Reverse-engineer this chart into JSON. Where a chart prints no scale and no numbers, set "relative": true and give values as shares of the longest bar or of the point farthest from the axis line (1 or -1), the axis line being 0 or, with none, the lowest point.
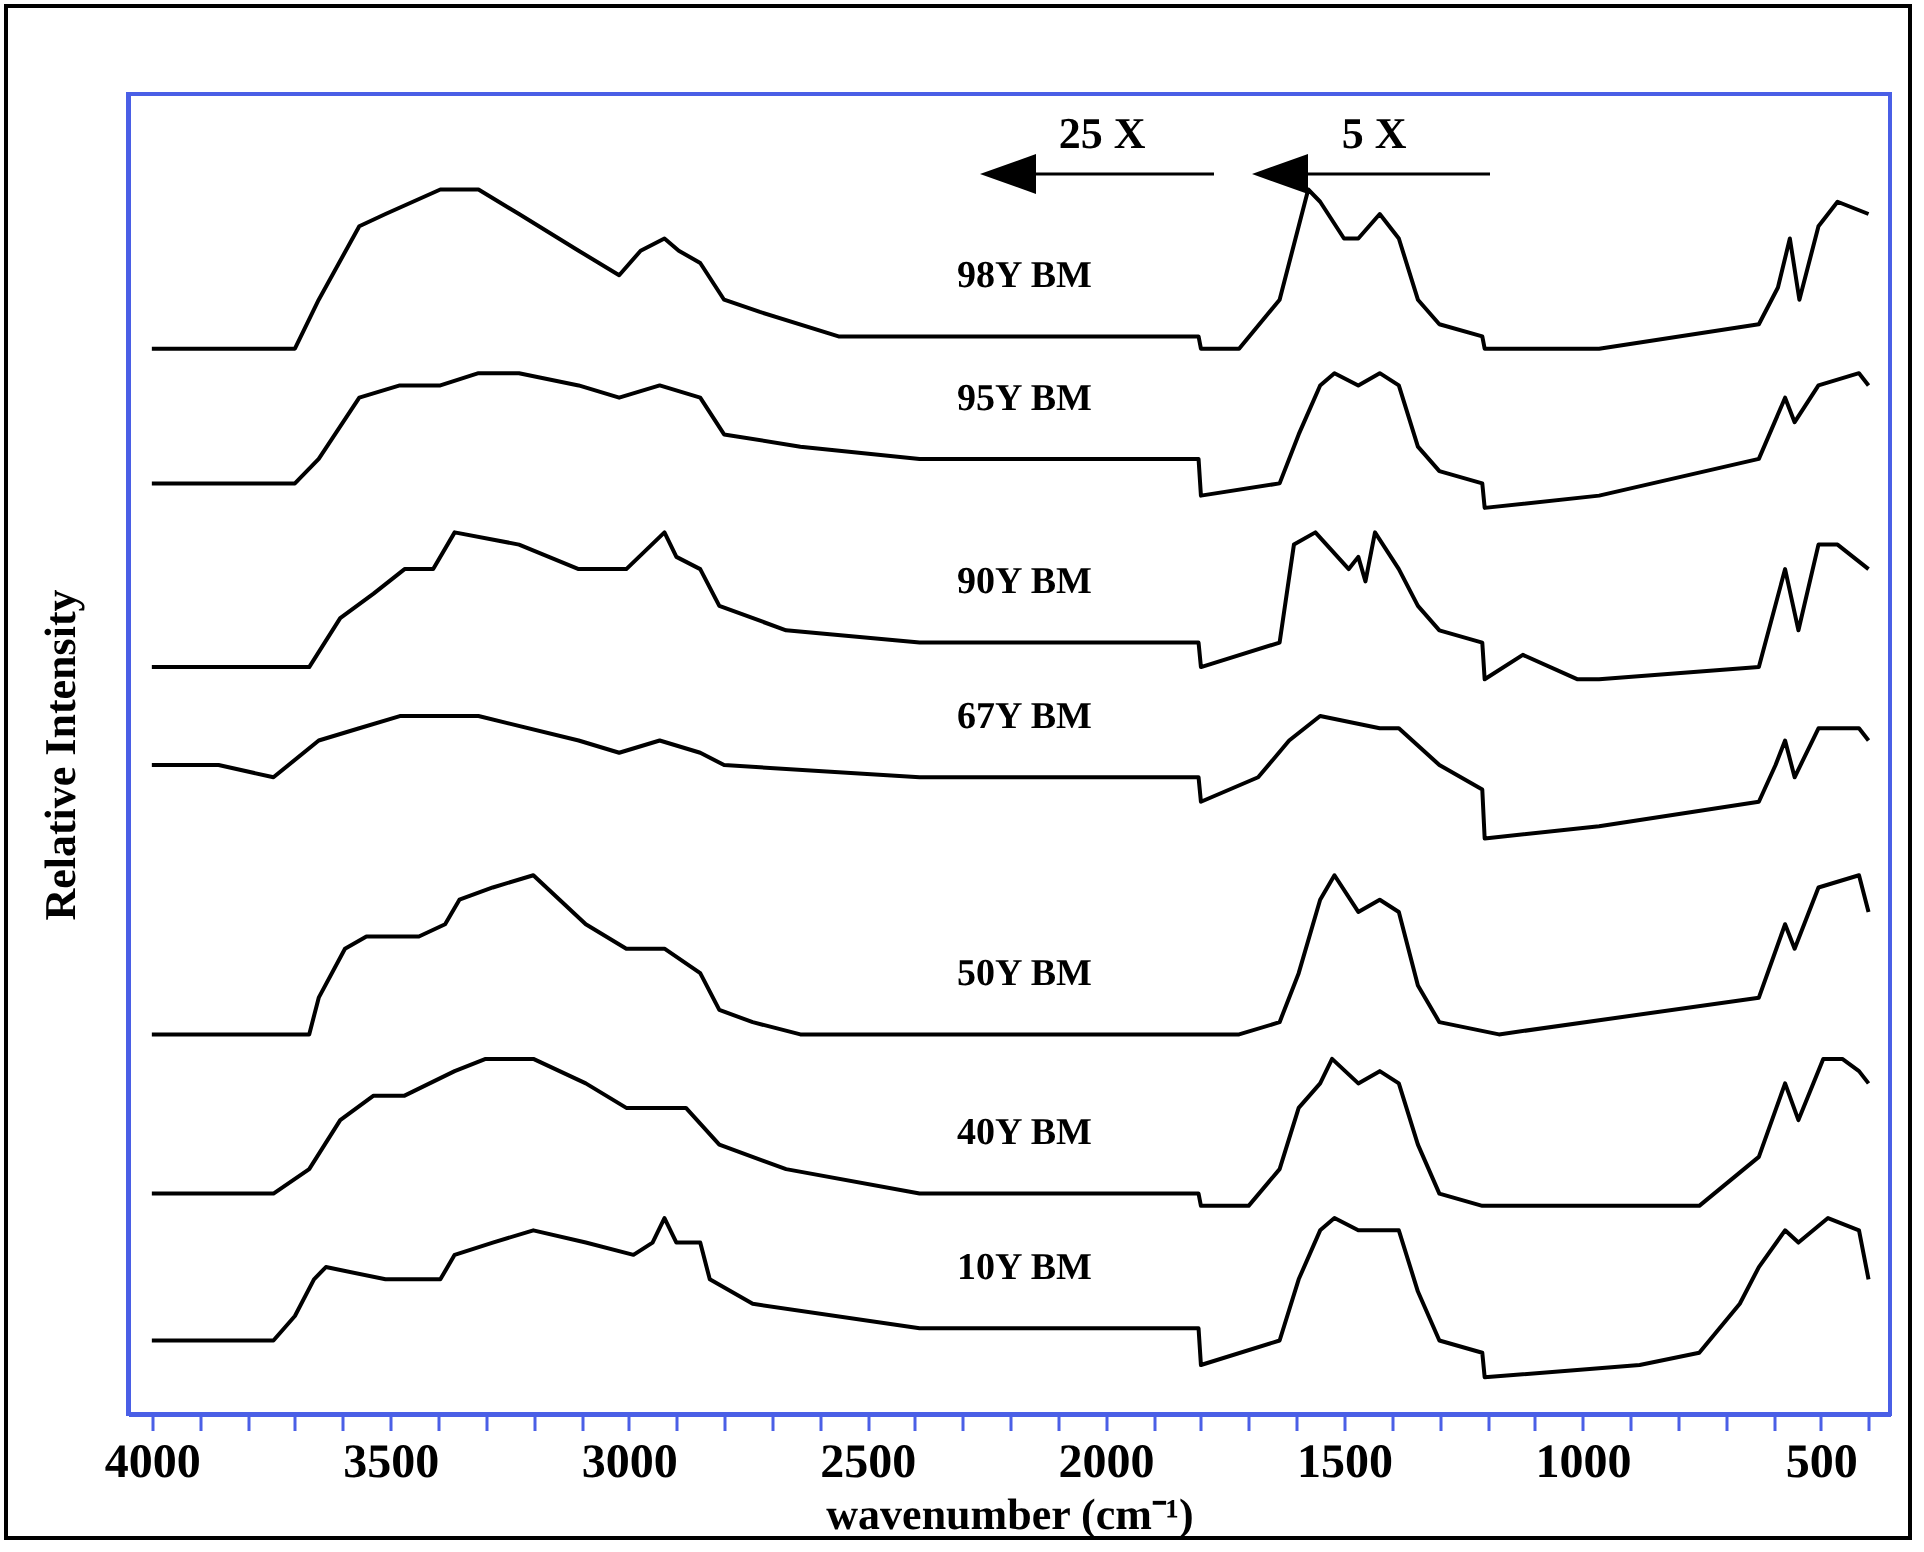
{
  "chart_data": {
    "type": "line",
    "relative": true,
    "xlabel": "wavenumber (cm⁻¹)",
    "ylabel": "Relative Intensity",
    "xlim": [
      4050,
      355
    ],
    "xticks": [
      4000,
      {
        "value": 3900,
        "label": null
      },
      {
        "value": 3800,
        "label": null
      },
      {
        "value": 3700,
        "label": null
      },
      {
        "value": 3600,
        "label": null
      },
      3500,
      {
        "value": 3400,
        "label": null
      },
      {
        "value": 3300,
        "label": null
      },
      {
        "value": 3200,
        "label": null
      },
      {
        "value": 3100,
        "label": null
      },
      3000,
      {
        "value": 2900,
        "label": null
      },
      {
        "value": 2800,
        "label": null
      },
      {
        "value": 2700,
        "label": null
      },
      {
        "value": 2600,
        "label": null
      },
      2500,
      {
        "value": 2400,
        "label": null
      },
      {
        "value": 2300,
        "label": null
      },
      {
        "value": 2200,
        "label": null
      },
      {
        "value": 2100,
        "label": null
      },
      2000,
      {
        "value": 1900,
        "label": null
      },
      {
        "value": 1800,
        "label": null
      },
      {
        "value": 1700,
        "label": null
      },
      {
        "value": 1600,
        "label": null
      },
      1500,
      {
        "value": 1400,
        "label": null
      },
      {
        "value": 1300,
        "label": null
      },
      {
        "value": 1200,
        "label": null
      },
      {
        "value": 1100,
        "label": null
      },
      1000,
      {
        "value": 900,
        "label": null
      },
      {
        "value": 800,
        "label": null
      },
      {
        "value": 700,
        "label": null
      },
      {
        "value": 600,
        "label": null
      },
      500,
      {
        "value": 400,
        "label": null
      }
    ],
    "annotations": [
      "25 X",
      "5 X"
    ],
    "series": [
      {
        "name": "98Y BM",
        "color": "#000000",
        "x": [
          4000,
          3700,
          3650,
          3565,
          3510,
          3395,
          3315,
          3230,
          3105,
          3020,
          2975,
          2925,
          2895,
          2850,
          2800,
          2725,
          2560,
          2390,
          1805,
          1800,
          1720,
          1635,
          1595,
          1575,
          1550,
          1500,
          1470,
          1425,
          1385,
          1345,
          1300,
          1210,
          1205,
          965,
          630,
          590,
          565,
          545,
          505,
          465,
          400
        ],
        "values": [
          0.87,
          0.87,
          0.91,
          0.97,
          0.98,
          1.0,
          1.0,
          0.98,
          0.95,
          0.93,
          0.95,
          0.96,
          0.95,
          0.94,
          0.91,
          0.9,
          0.88,
          0.88,
          0.88,
          0.87,
          0.87,
          0.91,
          0.97,
          1.0,
          0.99,
          0.96,
          0.96,
          0.98,
          0.96,
          0.91,
          0.89,
          0.88,
          0.87,
          0.87,
          0.89,
          0.92,
          0.96,
          0.91,
          0.97,
          0.99,
          0.98
        ]
      },
      {
        "name": "95Y BM",
        "color": "#000000",
        "x": [
          4000,
          3700,
          3650,
          3565,
          3480,
          3395,
          3315,
          3230,
          3105,
          3020,
          2935,
          2850,
          2800,
          2640,
          2390,
          1805,
          1800,
          1635,
          1595,
          1550,
          1520,
          1470,
          1425,
          1385,
          1345,
          1300,
          1210,
          1205,
          965,
          630,
          575,
          555,
          505,
          420,
          400
        ],
        "values": [
          0.76,
          0.76,
          0.78,
          0.83,
          0.84,
          0.84,
          0.85,
          0.85,
          0.84,
          0.83,
          0.84,
          0.83,
          0.8,
          0.79,
          0.78,
          0.78,
          0.75,
          0.76,
          0.8,
          0.84,
          0.85,
          0.84,
          0.85,
          0.84,
          0.79,
          0.77,
          0.76,
          0.74,
          0.75,
          0.78,
          0.83,
          0.81,
          0.84,
          0.85,
          0.84
        ]
      },
      {
        "name": "90Y BM",
        "color": "#000000",
        "x": [
          4000,
          3860,
          3745,
          3670,
          3605,
          3535,
          3470,
          3410,
          3365,
          3230,
          3105,
          3005,
          2925,
          2900,
          2850,
          2810,
          2670,
          2390,
          1805,
          1800,
          1635,
          1605,
          1560,
          1490,
          1470,
          1455,
          1435,
          1385,
          1345,
          1300,
          1210,
          1205,
          1125,
          1010,
          965,
          630,
          575,
          547,
          505,
          465,
          400
        ],
        "values": [
          0.61,
          0.61,
          0.61,
          0.61,
          0.65,
          0.67,
          0.69,
          0.69,
          0.72,
          0.71,
          0.69,
          0.69,
          0.72,
          0.7,
          0.69,
          0.66,
          0.64,
          0.63,
          0.63,
          0.61,
          0.63,
          0.71,
          0.72,
          0.69,
          0.7,
          0.68,
          0.72,
          0.69,
          0.66,
          0.64,
          0.63,
          0.6,
          0.62,
          0.6,
          0.6,
          0.61,
          0.69,
          0.64,
          0.71,
          0.71,
          0.69
        ]
      },
      {
        "name": "67Y BM",
        "color": "#000000",
        "x": [
          4000,
          3860,
          3745,
          3650,
          3565,
          3480,
          3395,
          3315,
          3105,
          3020,
          2935,
          2850,
          2800,
          2390,
          1805,
          1800,
          1680,
          1615,
          1550,
          1425,
          1385,
          1300,
          1210,
          1205,
          965,
          630,
          595,
          575,
          555,
          505,
          420,
          400
        ],
        "values": [
          0.53,
          0.53,
          0.52,
          0.55,
          0.56,
          0.57,
          0.57,
          0.57,
          0.55,
          0.54,
          0.55,
          0.54,
          0.53,
          0.52,
          0.52,
          0.5,
          0.52,
          0.55,
          0.57,
          0.56,
          0.56,
          0.53,
          0.51,
          0.47,
          0.48,
          0.5,
          0.53,
          0.55,
          0.52,
          0.56,
          0.56,
          0.55
        ]
      },
      {
        "name": "50Y BM",
        "color": "#000000",
        "x": [
          4000,
          3670,
          3650,
          3595,
          3550,
          3440,
          3385,
          3355,
          3285,
          3200,
          3145,
          3090,
          3005,
          2925,
          2850,
          2810,
          2740,
          2640,
          1720,
          1635,
          1595,
          1550,
          1520,
          1470,
          1425,
          1385,
          1345,
          1300,
          1175,
          630,
          575,
          555,
          505,
          420,
          400
        ],
        "values": [
          0.31,
          0.31,
          0.34,
          0.38,
          0.39,
          0.39,
          0.4,
          0.42,
          0.43,
          0.44,
          0.42,
          0.4,
          0.38,
          0.38,
          0.36,
          0.33,
          0.32,
          0.31,
          0.31,
          0.32,
          0.36,
          0.42,
          0.44,
          0.41,
          0.42,
          0.41,
          0.35,
          0.32,
          0.31,
          0.34,
          0.4,
          0.38,
          0.43,
          0.44,
          0.41
        ]
      },
      {
        "name": "40Y BM",
        "color": "#000000",
        "x": [
          4000,
          3860,
          3745,
          3670,
          3605,
          3535,
          3470,
          3365,
          3300,
          3200,
          3090,
          3005,
          2880,
          2810,
          2670,
          2390,
          1805,
          1800,
          1700,
          1635,
          1595,
          1550,
          1525,
          1470,
          1425,
          1385,
          1345,
          1300,
          1210,
          1205,
          755,
          630,
          575,
          547,
          495,
          455,
          420,
          400
        ],
        "values": [
          0.18,
          0.18,
          0.18,
          0.2,
          0.24,
          0.26,
          0.26,
          0.28,
          0.29,
          0.29,
          0.27,
          0.25,
          0.25,
          0.22,
          0.2,
          0.18,
          0.18,
          0.17,
          0.17,
          0.2,
          0.25,
          0.27,
          0.29,
          0.27,
          0.28,
          0.27,
          0.22,
          0.18,
          0.17,
          0.17,
          0.17,
          0.21,
          0.27,
          0.24,
          0.29,
          0.29,
          0.28,
          0.27
        ]
      },
      {
        "name": "10Y BM",
        "color": "#000000",
        "x": [
          4000,
          3860,
          3745,
          3700,
          3660,
          3635,
          3510,
          3395,
          3365,
          3285,
          3200,
          3090,
          2990,
          2950,
          2925,
          2900,
          2850,
          2830,
          2740,
          2390,
          1805,
          1800,
          1635,
          1595,
          1550,
          1520,
          1470,
          1385,
          1345,
          1300,
          1210,
          1205,
          880,
          755,
          670,
          630,
          575,
          547,
          485,
          420,
          400
        ],
        "values": [
          0.06,
          0.06,
          0.06,
          0.08,
          0.11,
          0.12,
          0.11,
          0.11,
          0.13,
          0.14,
          0.15,
          0.14,
          0.13,
          0.14,
          0.16,
          0.14,
          0.14,
          0.11,
          0.09,
          0.07,
          0.07,
          0.04,
          0.06,
          0.11,
          0.15,
          0.16,
          0.15,
          0.15,
          0.1,
          0.06,
          0.05,
          0.03,
          0.04,
          0.05,
          0.09,
          0.12,
          0.15,
          0.14,
          0.16,
          0.15,
          0.11
        ]
      }
    ]
  }
}
